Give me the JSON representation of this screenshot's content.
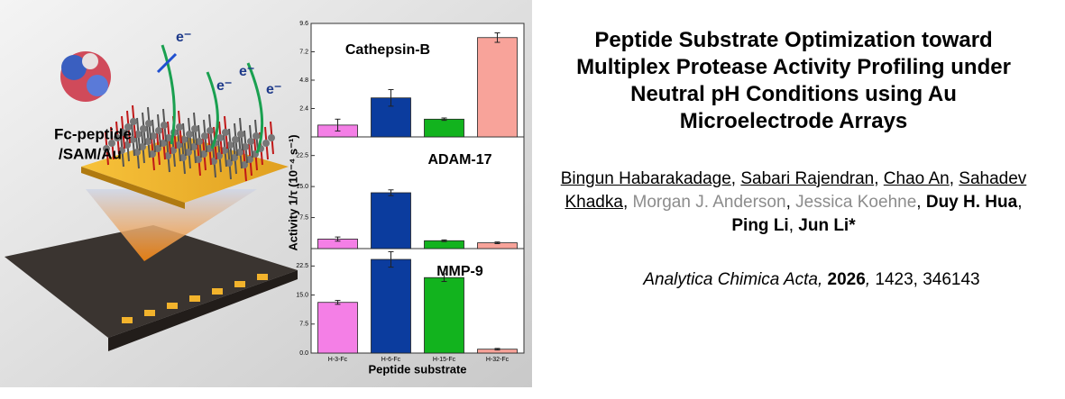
{
  "illustration": {
    "label_lines": [
      "Fc-peptide",
      "/SAM/Au"
    ],
    "electron_labels": [
      "e⁻",
      "e⁻",
      "e⁻",
      "e⁻"
    ]
  },
  "chart_data": [
    {
      "type": "bar",
      "title": "Cathepsin-B",
      "values": [
        1.0,
        3.3,
        1.5,
        8.4
      ],
      "errors": [
        0.5,
        0.7,
        0.1,
        0.4
      ],
      "colors": [
        "#f47fe6",
        "#0b3c9e",
        "#12b31e",
        "#f8a39a"
      ],
      "ylim": [
        0,
        9.6
      ],
      "yticks": [
        2.4,
        4.8,
        7.2,
        9.6
      ]
    },
    {
      "type": "bar",
      "title": "ADAM-17",
      "y_label": "Activity 1/τ (10⁻⁴ s⁻¹)",
      "values": [
        2.3,
        13.5,
        1.9,
        1.4
      ],
      "errors": [
        0.5,
        0.7,
        0.2,
        0.2
      ],
      "colors": [
        "#f47fe6",
        "#0b3c9e",
        "#12b31e",
        "#f8a39a"
      ],
      "ylim": [
        0,
        27
      ],
      "yticks": [
        7.5,
        {
          "value": 15,
          "label": "15.0"
        },
        22.5
      ]
    },
    {
      "type": "bar",
      "title": "MMP-9",
      "x_label": "Peptide substrate",
      "categories": [
        "H-3-Fc",
        "H-6-Fc",
        "H-15-Fc",
        "H-32-Fc"
      ],
      "values": [
        13.1,
        24.2,
        19.5,
        1.0
      ],
      "errors": [
        0.5,
        2.0,
        1.0,
        0.2
      ],
      "colors": [
        "#f47fe6",
        "#0b3c9e",
        "#12b31e",
        "#f8a39a"
      ],
      "ylim": [
        0,
        27
      ],
      "yticks": [
        {
          "value": 0,
          "label": "0.0"
        },
        7.5,
        {
          "value": 15,
          "label": "15.0"
        },
        22.5
      ]
    }
  ],
  "paper": {
    "title": "Peptide Substrate Optimization toward Multiplex Protease Activity Profiling under Neutral pH Conditions using Au Microelectrode Arrays",
    "author_separator": ", ",
    "authors": [
      {
        "name": "Bingun Habarakadage",
        "format": "underline"
      },
      {
        "name": "Sabari Rajendran",
        "format": "underline"
      },
      {
        "name": "Chao An",
        "format": "underline"
      },
      {
        "name": "Sahadev Khadka",
        "format": "underline"
      },
      {
        "name": "Morgan J. Anderson",
        "format": "gray"
      },
      {
        "name": "Jessica Koehne",
        "format": "gray"
      },
      {
        "name": "Duy H. Hua",
        "format": "bold"
      },
      {
        "name": "Ping Li",
        "format": "bold"
      },
      {
        "name": "Jun Li*",
        "format": "bold"
      }
    ],
    "citation": {
      "journal": "Analytica Chimica Acta,",
      "year": 2026,
      "year_suffix": ",",
      "volume": 1423,
      "article": 346143,
      "separator": ", "
    }
  }
}
